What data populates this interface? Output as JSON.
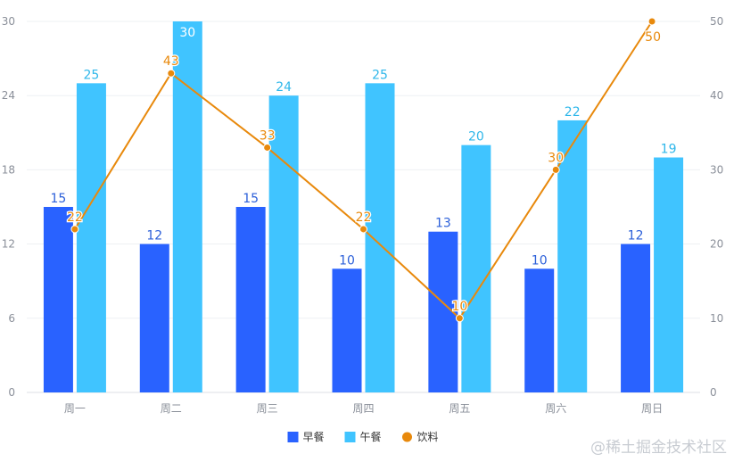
{
  "chart_data": {
    "type": "bar",
    "categories": [
      "周一",
      "周二",
      "周三",
      "周四",
      "周五",
      "周六",
      "周日"
    ],
    "series": [
      {
        "name": "早餐",
        "type": "bar",
        "axis": "left",
        "color": "#2962ff",
        "labelColor": "#2b5fd9",
        "values": [
          15,
          12,
          15,
          10,
          13,
          10,
          12
        ]
      },
      {
        "name": "午餐",
        "type": "bar",
        "axis": "left",
        "color": "#40c4ff",
        "labelColor": "#2fb7ea",
        "values": [
          25,
          30,
          24,
          25,
          20,
          22,
          19
        ]
      },
      {
        "name": "饮料",
        "type": "line",
        "axis": "right",
        "color": "#e8890c",
        "labelColor": "#e8890c",
        "values": [
          22,
          43,
          33,
          22,
          10,
          30,
          50
        ]
      }
    ],
    "yleft": {
      "ticks": [
        "0",
        "6",
        "12",
        "18",
        "24",
        "30"
      ],
      "ylim": [
        0,
        30
      ]
    },
    "yright": {
      "ticks": [
        "0",
        "10",
        "20",
        "30",
        "40",
        "50"
      ],
      "ylim": [
        0,
        50
      ]
    },
    "legend": "bottom-center",
    "grid": true
  },
  "watermark": "@稀土掘金技术社区"
}
